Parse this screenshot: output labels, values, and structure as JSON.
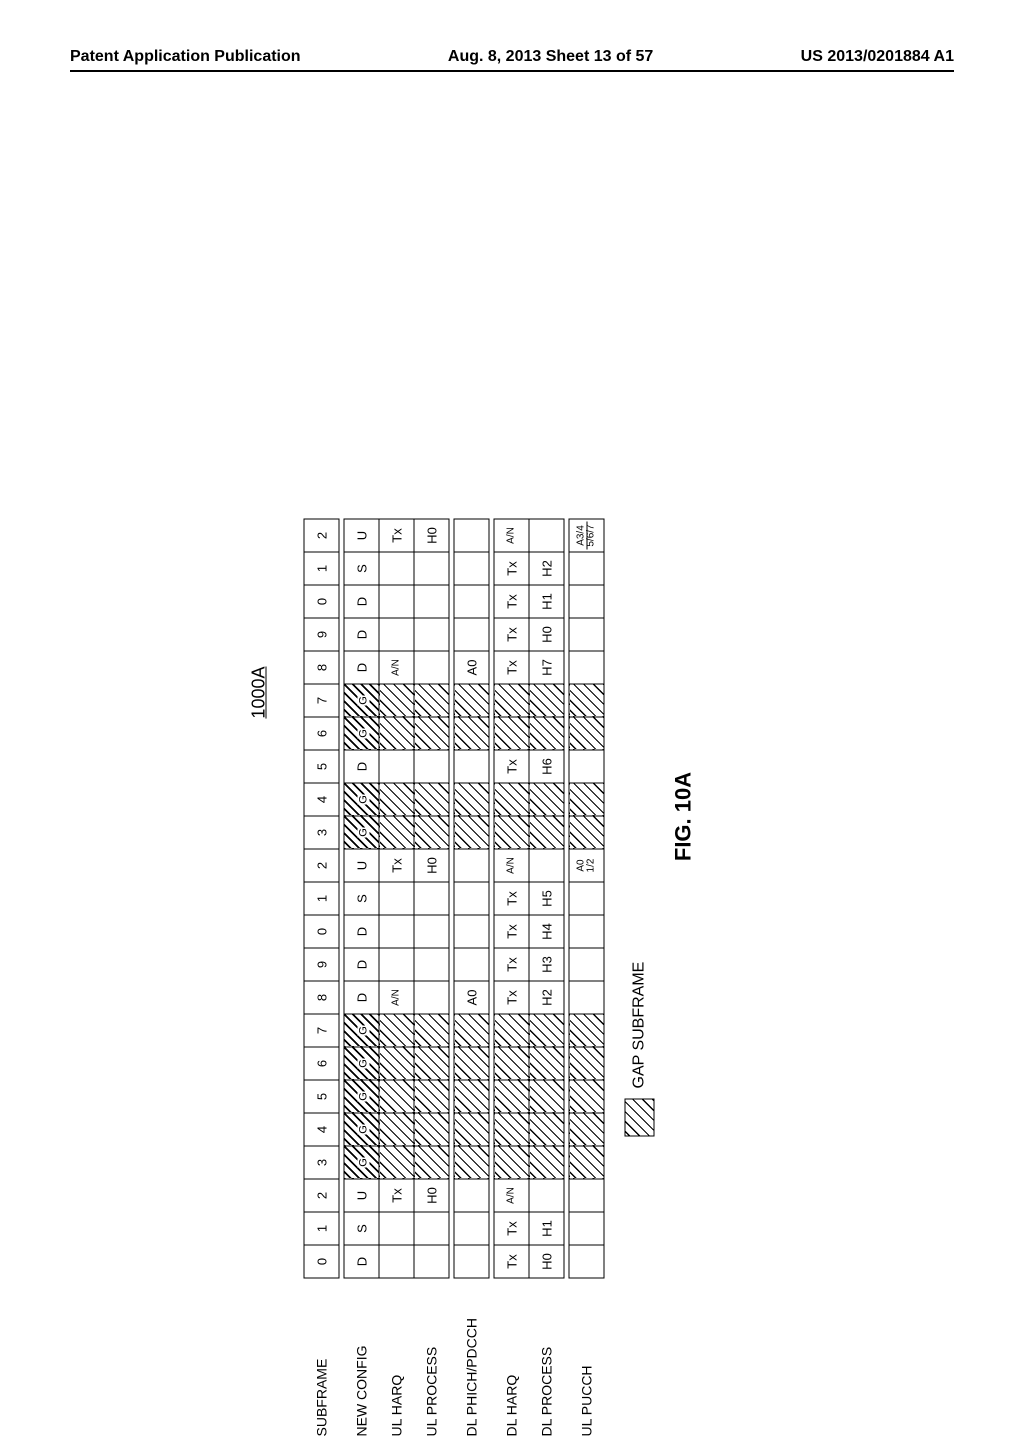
{
  "header": {
    "left": "Patent Application Publication",
    "center": "Aug. 8, 2013  Sheet 13 of 57",
    "right": "US 2013/0201884 A1"
  },
  "figure": {
    "ref": "1000A",
    "caption": "FIG. 10A",
    "legend": "GAP SUBFRAME",
    "rows": {
      "subframe": {
        "label": "SUBFRAME",
        "cells": [
          "0",
          "1",
          "2",
          "3",
          "4",
          "5",
          "6",
          "7",
          "8",
          "9",
          "0",
          "1",
          "2",
          "3",
          "4",
          "5",
          "6",
          "7",
          "8",
          "9",
          "0",
          "1",
          "2"
        ]
      },
      "new_config": {
        "label": "NEW CONFIG",
        "cells": [
          "D",
          "S",
          "U",
          "G",
          "G",
          "G",
          "G",
          "G",
          "D",
          "D",
          "D",
          "S",
          "U",
          "G",
          "G",
          "D",
          "G",
          "G",
          "D",
          "D",
          "D",
          "S",
          "U"
        ],
        "gap_flags": [
          0,
          0,
          0,
          1,
          1,
          1,
          1,
          1,
          0,
          0,
          0,
          0,
          0,
          1,
          1,
          0,
          1,
          1,
          0,
          0,
          0,
          0,
          0
        ]
      },
      "ul_harq_group": "UL HARQ",
      "ul_harq": {
        "label": "",
        "cells": [
          "",
          "",
          "Tx",
          "",
          "",
          "",
          "",
          "",
          "A/N",
          "",
          "",
          "",
          "Tx",
          "",
          "",
          "",
          "",
          "",
          "A/N",
          "",
          "",
          "",
          "Tx"
        ],
        "gap_flags": [
          0,
          0,
          0,
          1,
          1,
          1,
          1,
          1,
          0,
          0,
          0,
          0,
          0,
          1,
          1,
          0,
          1,
          1,
          0,
          0,
          0,
          0,
          0
        ]
      },
      "ul_process": {
        "label": "UL PROCESS",
        "cells": [
          "",
          "",
          "H0",
          "",
          "",
          "",
          "",
          "",
          "",
          "",
          "",
          "",
          "H0",
          "",
          "",
          "",
          "",
          "",
          "",
          "",
          "",
          "",
          "H0"
        ],
        "gap_flags": [
          0,
          0,
          0,
          1,
          1,
          1,
          1,
          1,
          0,
          0,
          0,
          0,
          0,
          1,
          1,
          0,
          1,
          1,
          0,
          0,
          0,
          0,
          0
        ]
      },
      "dl_phich": {
        "label": "DL PHICH/PDCCH",
        "cells": [
          "",
          "",
          "",
          "",
          "",
          "",
          "",
          "",
          "A0",
          "",
          "",
          "",
          "",
          "",
          "",
          "",
          "",
          "",
          "A0",
          "",
          "",
          "",
          ""
        ],
        "gap_flags": [
          0,
          0,
          0,
          1,
          1,
          1,
          1,
          1,
          0,
          0,
          0,
          0,
          0,
          1,
          1,
          0,
          1,
          1,
          0,
          0,
          0,
          0,
          0
        ]
      },
      "dl_harq_group": "DL HARQ",
      "dl_harq": {
        "label": "",
        "cells": [
          "Tx",
          "Tx",
          "A/N",
          "",
          "",
          "",
          "",
          "",
          "Tx",
          "Tx",
          "Tx",
          "Tx",
          "A/N",
          "",
          "",
          "Tx",
          "",
          "",
          "Tx",
          "Tx",
          "Tx",
          "Tx",
          "A/N"
        ],
        "gap_flags": [
          0,
          0,
          0,
          1,
          1,
          1,
          1,
          1,
          0,
          0,
          0,
          0,
          0,
          1,
          1,
          0,
          1,
          1,
          0,
          0,
          0,
          0,
          0
        ]
      },
      "dl_process": {
        "label": "DL PROCESS",
        "cells": [
          "H0",
          "H1",
          "",
          "",
          "",
          "",
          "",
          "",
          "H2",
          "H3",
          "H4",
          "H5",
          "",
          "",
          "",
          "H6",
          "",
          "",
          "H7",
          "H0",
          "H1",
          "H2",
          ""
        ],
        "gap_flags": [
          0,
          0,
          0,
          1,
          1,
          1,
          1,
          1,
          0,
          0,
          0,
          0,
          0,
          1,
          1,
          0,
          1,
          1,
          0,
          0,
          0,
          0,
          0
        ]
      },
      "ul_pucch": {
        "label": "UL PUCCH",
        "cells": [
          "",
          "",
          "",
          "",
          "",
          "",
          "",
          "",
          "",
          "",
          "",
          "",
          "A0 1/2",
          "",
          "",
          "",
          "",
          "",
          "",
          "",
          "",
          "",
          "A3/4 5/6/7"
        ],
        "gap_flags": [
          0,
          0,
          0,
          1,
          1,
          1,
          1,
          1,
          0,
          0,
          0,
          0,
          0,
          1,
          1,
          0,
          1,
          1,
          0,
          0,
          0,
          0,
          0
        ],
        "strike_flags": [
          0,
          0,
          0,
          0,
          0,
          0,
          0,
          0,
          0,
          0,
          0,
          0,
          0,
          0,
          0,
          0,
          0,
          0,
          0,
          0,
          0,
          0,
          1
        ]
      }
    },
    "colors": {
      "border": "#000000",
      "background": "#ffffff",
      "hatch_dark": "#000000"
    }
  }
}
